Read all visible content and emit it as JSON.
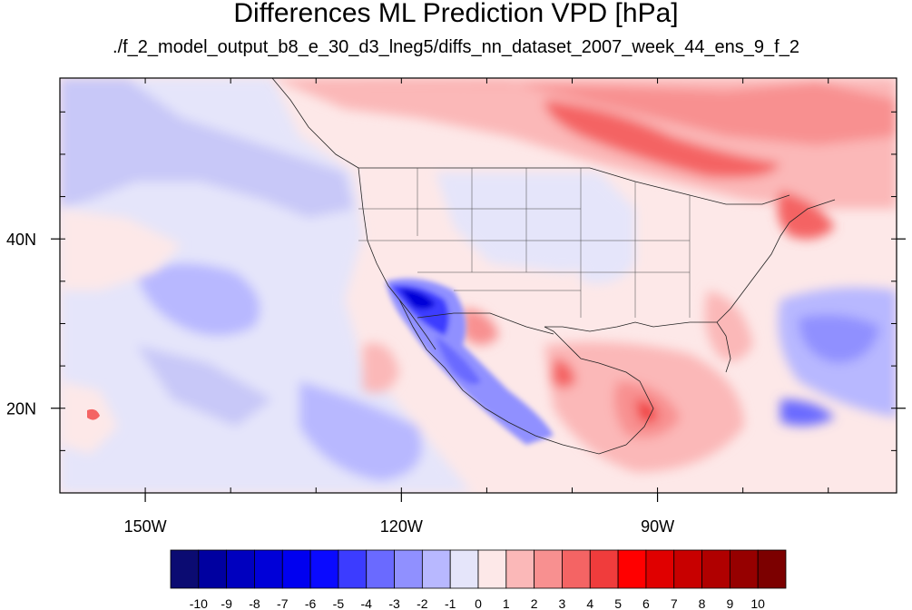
{
  "title": "Differences ML Prediction VPD [hPa]",
  "subtitle": "./f_2_model_output_b8_e_30_d3_lneg5/diffs_nn_dataset_2007_week_44_ens_9_f_2",
  "map": {
    "projection": "cylindrical-equidistant",
    "lon_range": [
      -160,
      -62
    ],
    "lat_range": [
      10,
      59
    ],
    "lon_ticks": [
      {
        "value": -150,
        "label": "150W"
      },
      {
        "value": -120,
        "label": "120W"
      },
      {
        "value": -90,
        "label": "90W"
      }
    ],
    "lat_ticks": [
      {
        "value": 40,
        "label": "40N"
      },
      {
        "value": 20,
        "label": "20N"
      }
    ],
    "field_description_regions": [
      {
        "name": "mexico-baja-negative",
        "sign": "negative"
      },
      {
        "name": "canada-positive",
        "sign": "positive"
      },
      {
        "name": "gulf-positive",
        "sign": "positive"
      },
      {
        "name": "pacific-negative",
        "sign": "negative"
      },
      {
        "name": "atlantic-negative",
        "sign": "negative"
      }
    ]
  },
  "colorbar": {
    "levels": [
      -10,
      -9,
      -8,
      -7,
      -6,
      -5,
      -4,
      -3,
      -2,
      -1,
      0,
      1,
      2,
      3,
      4,
      5,
      6,
      7,
      8,
      9,
      10
    ],
    "colors": [
      "#0b0b72",
      "#0000a0",
      "#0000bf",
      "#0000d8",
      "#0000f0",
      "#0a0aff",
      "#3c3cff",
      "#6a6aff",
      "#9090ff",
      "#b8b8ff",
      "#e5e5fa",
      "#fde8e8",
      "#fbb8b8",
      "#f89090",
      "#f46464",
      "#f03c3c",
      "#ff0000",
      "#e00000",
      "#c80000",
      "#b00000",
      "#960000",
      "#7c0000"
    ]
  }
}
